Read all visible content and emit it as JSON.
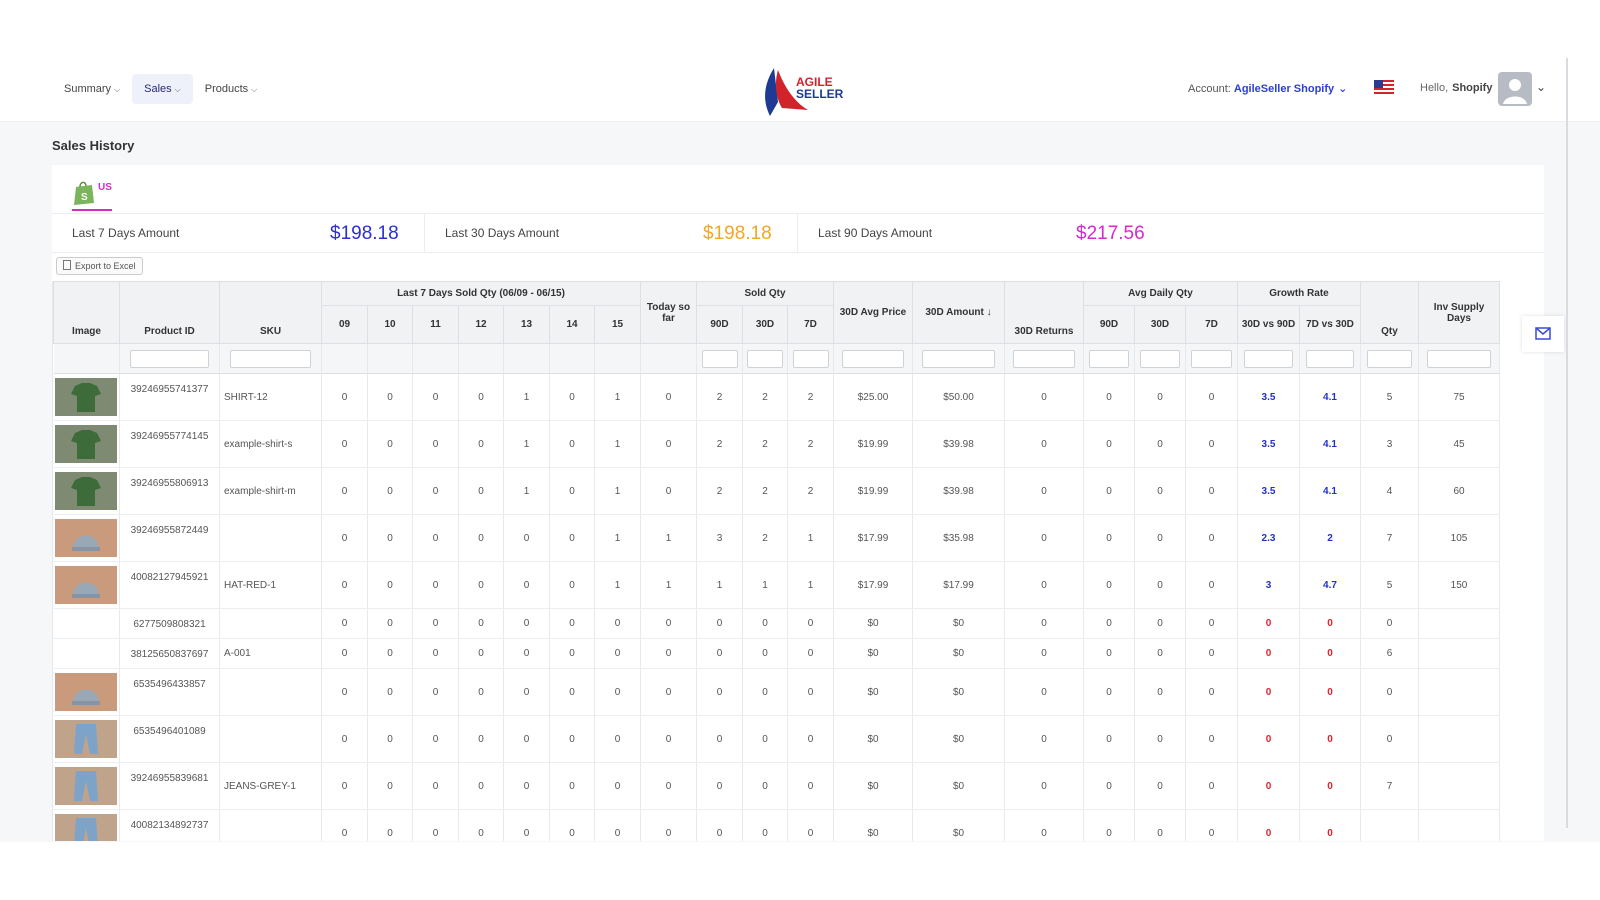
{
  "nav": {
    "items": [
      {
        "label": "Summary",
        "active": false
      },
      {
        "label": "Sales",
        "active": true
      },
      {
        "label": "Products",
        "active": false
      }
    ]
  },
  "logo": {
    "line1": "AGILE",
    "line2": "SELLER"
  },
  "account": {
    "prefix": "Account:",
    "name": "AgileSeller Shopify"
  },
  "user": {
    "hello": "Hello,",
    "name": "Shopify"
  },
  "page_title": "Sales History",
  "store_tab": {
    "label": "US",
    "icon": "shopify-bag-icon"
  },
  "stats": [
    {
      "label": "Last 7 Days Amount",
      "value": "$198.18",
      "color": "#2b2fd1"
    },
    {
      "label": "Last 30 Days Amount",
      "value": "$198.18",
      "color": "#f5a623"
    },
    {
      "label": "Last 90 Days Amount",
      "value": "$217.56",
      "color": "#d42ad0"
    }
  ],
  "export_label": "Export to Excel",
  "table": {
    "group_headers": {
      "last7": "Last 7 Days Sold Qty (06/09 - 06/15)",
      "sold_qty": "Sold Qty",
      "avg_daily": "Avg Daily Qty",
      "growth": "Growth Rate"
    },
    "headers": {
      "image": "Image",
      "product_id": "Product ID",
      "sku": "SKU",
      "d09": "09",
      "d10": "10",
      "d11": "11",
      "d12": "12",
      "d13": "13",
      "d14": "14",
      "d15": "15",
      "today": "Today so far",
      "s90": "90D",
      "s30": "30D",
      "s7": "7D",
      "avg_price": "30D Avg Price",
      "amount": "30D Amount ↓",
      "returns": "30D Returns",
      "a90": "90D",
      "a30": "30D",
      "a7": "7D",
      "g30v90": "30D vs 90D",
      "g7v30": "7D vs 30D",
      "qty": "Qty",
      "inv": "Inv Supply Days"
    },
    "rows": [
      {
        "img": "green-shirt",
        "pid": "39246955741377",
        "sku": "SHIRT-12",
        "days": [
          "0",
          "0",
          "0",
          "0",
          "1",
          "0",
          "1"
        ],
        "today": "0",
        "sold": [
          "2",
          "2",
          "2"
        ],
        "avg_price": "$25.00",
        "amount": "$50.00",
        "returns": "0",
        "avg": [
          "0",
          "0",
          "0"
        ],
        "g1": "3.5",
        "g2": "4.1",
        "qty": "5",
        "inv": "75"
      },
      {
        "img": "green-shirt",
        "pid": "39246955774145",
        "sku": "example-shirt-s",
        "days": [
          "0",
          "0",
          "0",
          "0",
          "1",
          "0",
          "1"
        ],
        "today": "0",
        "sold": [
          "2",
          "2",
          "2"
        ],
        "avg_price": "$19.99",
        "amount": "$39.98",
        "returns": "0",
        "avg": [
          "0",
          "0",
          "0"
        ],
        "g1": "3.5",
        "g2": "4.1",
        "qty": "3",
        "inv": "45"
      },
      {
        "img": "green-shirt",
        "pid": "39246955806913",
        "sku": "example-shirt-m",
        "days": [
          "0",
          "0",
          "0",
          "0",
          "1",
          "0",
          "1"
        ],
        "today": "0",
        "sold": [
          "2",
          "2",
          "2"
        ],
        "avg_price": "$19.99",
        "amount": "$39.98",
        "returns": "0",
        "avg": [
          "0",
          "0",
          "0"
        ],
        "g1": "3.5",
        "g2": "4.1",
        "qty": "4",
        "inv": "60"
      },
      {
        "img": "grey-hat",
        "pid": "39246955872449",
        "sku": "",
        "days": [
          "0",
          "0",
          "0",
          "0",
          "0",
          "0",
          "1"
        ],
        "today": "1",
        "sold": [
          "3",
          "2",
          "1"
        ],
        "avg_price": "$17.99",
        "amount": "$35.98",
        "returns": "0",
        "avg": [
          "0",
          "0",
          "0"
        ],
        "g1": "2.3",
        "g2": "2",
        "qty": "7",
        "inv": "105"
      },
      {
        "img": "grey-hat",
        "pid": "40082127945921",
        "sku": "HAT-RED-1",
        "days": [
          "0",
          "0",
          "0",
          "0",
          "0",
          "0",
          "1"
        ],
        "today": "1",
        "sold": [
          "1",
          "1",
          "1"
        ],
        "avg_price": "$17.99",
        "amount": "$17.99",
        "returns": "0",
        "avg": [
          "0",
          "0",
          "0"
        ],
        "g1": "3",
        "g2": "4.7",
        "qty": "5",
        "inv": "150"
      },
      {
        "img": "",
        "pid": "6277509808321",
        "sku": "",
        "days": [
          "0",
          "0",
          "0",
          "0",
          "0",
          "0",
          "0"
        ],
        "today": "0",
        "sold": [
          "0",
          "0",
          "0"
        ],
        "avg_price": "$0",
        "amount": "$0",
        "returns": "0",
        "avg": [
          "0",
          "0",
          "0"
        ],
        "g1": "0",
        "g2": "0",
        "qty": "0",
        "inv": ""
      },
      {
        "img": "",
        "pid": "38125650837697",
        "sku": "A-001",
        "days": [
          "0",
          "0",
          "0",
          "0",
          "0",
          "0",
          "0"
        ],
        "today": "0",
        "sold": [
          "0",
          "0",
          "0"
        ],
        "avg_price": "$0",
        "amount": "$0",
        "returns": "0",
        "avg": [
          "0",
          "0",
          "0"
        ],
        "g1": "0",
        "g2": "0",
        "qty": "6",
        "inv": ""
      },
      {
        "img": "grey-hat",
        "pid": "6535496433857",
        "sku": "",
        "days": [
          "0",
          "0",
          "0",
          "0",
          "0",
          "0",
          "0"
        ],
        "today": "0",
        "sold": [
          "0",
          "0",
          "0"
        ],
        "avg_price": "$0",
        "amount": "$0",
        "returns": "0",
        "avg": [
          "0",
          "0",
          "0"
        ],
        "g1": "0",
        "g2": "0",
        "qty": "0",
        "inv": ""
      },
      {
        "img": "jeans",
        "pid": "6535496401089",
        "sku": "",
        "days": [
          "0",
          "0",
          "0",
          "0",
          "0",
          "0",
          "0"
        ],
        "today": "0",
        "sold": [
          "0",
          "0",
          "0"
        ],
        "avg_price": "$0",
        "amount": "$0",
        "returns": "0",
        "avg": [
          "0",
          "0",
          "0"
        ],
        "g1": "0",
        "g2": "0",
        "qty": "0",
        "inv": ""
      },
      {
        "img": "jeans",
        "pid": "39246955839681",
        "sku": "JEANS-GREY-1",
        "days": [
          "0",
          "0",
          "0",
          "0",
          "0",
          "0",
          "0"
        ],
        "today": "0",
        "sold": [
          "0",
          "0",
          "0"
        ],
        "avg_price": "$0",
        "amount": "$0",
        "returns": "0",
        "avg": [
          "0",
          "0",
          "0"
        ],
        "g1": "0",
        "g2": "0",
        "qty": "7",
        "inv": ""
      },
      {
        "img": "jeans",
        "pid": "40082134892737",
        "sku": "",
        "days": [
          "0",
          "0",
          "0",
          "0",
          "0",
          "0",
          "0"
        ],
        "today": "0",
        "sold": [
          "0",
          "0",
          "0"
        ],
        "avg_price": "$0",
        "amount": "$0",
        "returns": "0",
        "avg": [
          "0",
          "0",
          "0"
        ],
        "g1": "0",
        "g2": "0",
        "qty": "",
        "inv": ""
      }
    ]
  },
  "colors": {
    "accent": "#2b3fd6",
    "growth_positive": "#2232c9",
    "growth_zero": "#e0232d",
    "tab": "#d12ec5"
  }
}
